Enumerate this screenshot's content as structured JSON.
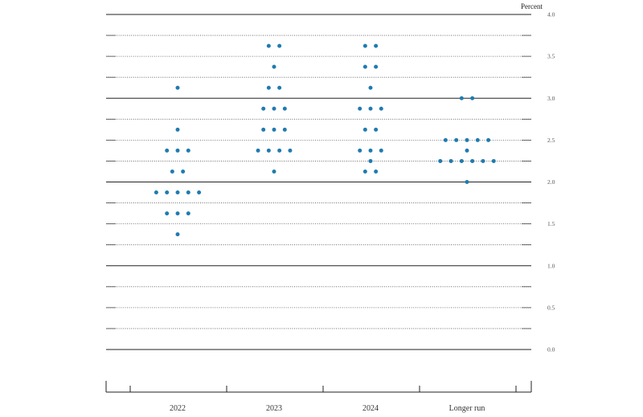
{
  "chart_data": {
    "type": "scatter",
    "title": "",
    "ylabel": "Percent",
    "ylim": [
      0,
      4
    ],
    "ytick_step": 0.25,
    "ytick_labels": [
      "0.0",
      "0.5",
      "1.0",
      "1.5",
      "2.0",
      "2.5",
      "3.0",
      "3.5",
      "4.0"
    ],
    "grid": true,
    "categories": [
      "2022",
      "2023",
      "2024",
      "Longer run"
    ],
    "dot_color": "#1f7bb0",
    "series": [
      {
        "category": "2022",
        "rows": [
          {
            "y": 3.125,
            "count": 1
          },
          {
            "y": 2.625,
            "count": 1
          },
          {
            "y": 2.375,
            "count": 3
          },
          {
            "y": 2.125,
            "count": 2
          },
          {
            "y": 1.875,
            "count": 5
          },
          {
            "y": 1.625,
            "count": 3
          },
          {
            "y": 1.375,
            "count": 1
          }
        ]
      },
      {
        "category": "2023",
        "rows": [
          {
            "y": 3.625,
            "count": 2
          },
          {
            "y": 3.375,
            "count": 1
          },
          {
            "y": 3.125,
            "count": 2
          },
          {
            "y": 2.875,
            "count": 3
          },
          {
            "y": 2.625,
            "count": 3
          },
          {
            "y": 2.375,
            "count": 4
          },
          {
            "y": 2.125,
            "count": 1
          }
        ]
      },
      {
        "category": "2024",
        "rows": [
          {
            "y": 3.625,
            "count": 2
          },
          {
            "y": 3.375,
            "count": 2
          },
          {
            "y": 3.125,
            "count": 1
          },
          {
            "y": 2.875,
            "count": 3
          },
          {
            "y": 2.625,
            "count": 2
          },
          {
            "y": 2.375,
            "count": 3
          },
          {
            "y": 2.25,
            "count": 1
          },
          {
            "y": 2.125,
            "count": 2
          }
        ]
      },
      {
        "category": "Longer run",
        "rows": [
          {
            "y": 3.0,
            "count": 2
          },
          {
            "y": 2.5,
            "count": 5
          },
          {
            "y": 2.375,
            "count": 1
          },
          {
            "y": 2.25,
            "count": 6
          },
          {
            "y": 2.0,
            "count": 1
          }
        ]
      }
    ]
  }
}
